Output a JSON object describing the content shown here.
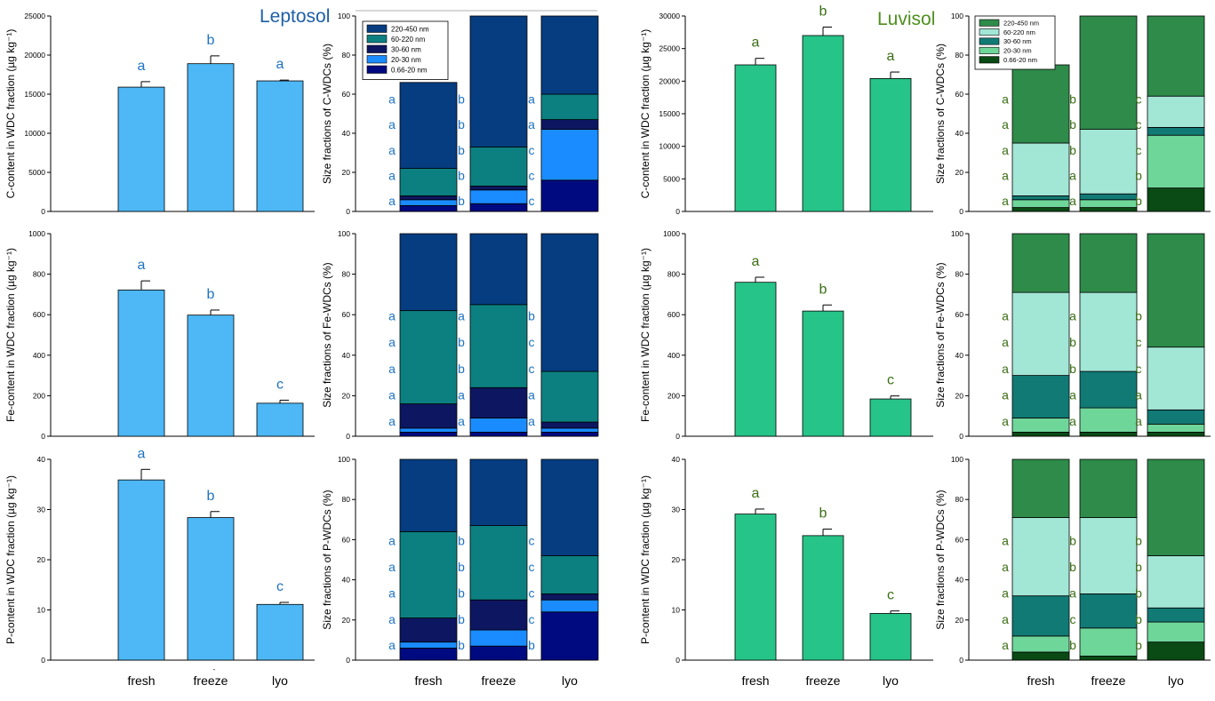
{
  "soil_titles": {
    "leptosol": "Leptosol",
    "luvisol": "Luvisol"
  },
  "x_categories": [
    "fresh",
    "freeze",
    "lyo"
  ],
  "stray_mark": "-",
  "colors": {
    "leptosol_bar": "#4db8f5",
    "luvisol_bar": "#26c488",
    "leptosol_letters": "#1e73c2",
    "luvisol_letters": "#3a6e14",
    "leptosol_fractions": [
      "#063c80",
      "#0c8080",
      "#0d1660",
      "#1a8cff",
      "#000a80"
    ],
    "luvisol_fractions": [
      "#2e8b4a",
      "#a2e6d6",
      "#117a75",
      "#6fd69a",
      "#0a4a14"
    ]
  },
  "legend_labels": [
    "220-450 nm",
    "60-220 nm",
    "30-60 nm",
    "20-30 nm",
    "0.66-20 nm"
  ],
  "chart_data": [
    {
      "type": "bar",
      "soil": "Leptosol",
      "element": "C",
      "ylabel": "C-content in WDC  fraction (µg kg⁻¹)",
      "ylim": [
        0,
        25000
      ],
      "yticks": [
        0,
        5000,
        10000,
        15000,
        20000,
        25000
      ],
      "categories": [
        "fresh",
        "freeze",
        "lyo"
      ],
      "values": [
        15900,
        18900,
        16700
      ],
      "errors": [
        700,
        1000,
        100
      ],
      "letters": [
        "a",
        "b",
        "a"
      ]
    },
    {
      "type": "bar",
      "soil": "Leptosol",
      "element": "Fe",
      "ylabel": "Fe-content in WDC fraction (µg kg⁻¹)",
      "ylim": [
        0,
        1000
      ],
      "yticks": [
        0,
        200,
        400,
        600,
        800,
        1000
      ],
      "categories": [
        "fresh",
        "freeze",
        "lyo"
      ],
      "values": [
        722,
        598,
        163
      ],
      "errors": [
        45,
        25,
        15
      ],
      "letters": [
        "a",
        "b",
        "c"
      ]
    },
    {
      "type": "bar",
      "soil": "Leptosol",
      "element": "P",
      "ylabel": "P-content in WDC fraction (µg kg⁻¹)",
      "ylim": [
        0,
        40
      ],
      "yticks": [
        0,
        10,
        20,
        30,
        40
      ],
      "categories": [
        "fresh",
        "freeze",
        "lyo"
      ],
      "values": [
        35.9,
        28.4,
        11.1
      ],
      "errors": [
        2.1,
        1.2,
        0.4
      ],
      "letters": [
        "a",
        "b",
        "c"
      ]
    },
    {
      "type": "bar",
      "soil": "Luvisol",
      "element": "C",
      "ylabel": "C-content in WDC  fraction (µg kg⁻¹)",
      "ylim": [
        0,
        30000
      ],
      "yticks": [
        0,
        5000,
        10000,
        15000,
        20000,
        25000,
        30000
      ],
      "categories": [
        "fresh",
        "freeze",
        "lyo"
      ],
      "values": [
        22500,
        27000,
        20400
      ],
      "errors": [
        1000,
        1300,
        1000
      ],
      "letters": [
        "a",
        "b",
        "a"
      ]
    },
    {
      "type": "bar",
      "soil": "Luvisol",
      "element": "Fe",
      "ylabel": "Fe-content in WDC fraction (µg kg⁻¹)",
      "ylim": [
        0,
        1000
      ],
      "yticks": [
        0,
        200,
        400,
        600,
        800,
        1000
      ],
      "categories": [
        "fresh",
        "freeze",
        "lyo"
      ],
      "values": [
        760,
        618,
        184
      ],
      "errors": [
        25,
        30,
        15
      ],
      "letters": [
        "a",
        "b",
        "c"
      ]
    },
    {
      "type": "bar",
      "soil": "Luvisol",
      "element": "P",
      "ylabel": "P-content in WDC fraction (µg kg⁻¹)",
      "ylim": [
        0,
        40
      ],
      "yticks": [
        0,
        10,
        20,
        30,
        40
      ],
      "categories": [
        "fresh",
        "freeze",
        "lyo"
      ],
      "values": [
        29.1,
        24.8,
        9.3
      ],
      "errors": [
        1.0,
        1.3,
        0.5
      ],
      "letters": [
        "a",
        "b",
        "c"
      ]
    },
    {
      "type": "stacked_bar",
      "soil": "Leptosol",
      "element": "C",
      "ylabel": "Size fractions of C-WDCs (%)",
      "ylim": [
        0,
        100
      ],
      "yticks": [
        0,
        20,
        40,
        60,
        80,
        100
      ],
      "categories": [
        "fresh",
        "freeze",
        "lyo"
      ],
      "legend": [
        "220-450 nm",
        "60-220 nm",
        "30-60 nm",
        "20-30 nm",
        "0.66-20 nm"
      ],
      "series": [
        {
          "name": "0.66-20 nm",
          "values": [
            3,
            4,
            16
          ]
        },
        {
          "name": "20-30 nm",
          "values": [
            3,
            7,
            26
          ]
        },
        {
          "name": "30-60 nm",
          "values": [
            2,
            2,
            5
          ]
        },
        {
          "name": "60-220 nm",
          "values": [
            14,
            20,
            13
          ]
        },
        {
          "name": "220-450 nm",
          "values": [
            44,
            67,
            40
          ]
        }
      ],
      "letters": [
        [
          "a",
          "a",
          "a",
          "a",
          "a"
        ],
        [
          "b",
          "b",
          "b",
          "b",
          "b"
        ],
        [
          "c",
          "c",
          "c",
          "a",
          "a"
        ]
      ]
    },
    {
      "type": "stacked_bar",
      "soil": "Leptosol",
      "element": "Fe",
      "ylabel": "Size fractions of Fe-WDCs (%)",
      "ylim": [
        0,
        100
      ],
      "yticks": [
        0,
        20,
        40,
        60,
        80,
        100
      ],
      "categories": [
        "fresh",
        "freeze",
        "lyo"
      ],
      "series": [
        {
          "name": "0.66-20 nm",
          "values": [
            2,
            2,
            2
          ]
        },
        {
          "name": "20-30 nm",
          "values": [
            2,
            7,
            2
          ]
        },
        {
          "name": "30-60 nm",
          "values": [
            12,
            15,
            3
          ]
        },
        {
          "name": "60-220 nm",
          "values": [
            46,
            41,
            25
          ]
        },
        {
          "name": "220-450 nm",
          "values": [
            38,
            35,
            68
          ]
        }
      ],
      "letters": [
        [
          "a",
          "a",
          "a",
          "a",
          "a"
        ],
        [
          "a",
          "a",
          "b",
          "b",
          "a"
        ],
        [
          "a",
          "a",
          "c",
          "c",
          "b"
        ]
      ]
    },
    {
      "type": "stacked_bar",
      "soil": "Leptosol",
      "element": "P",
      "ylabel": "Size fractions of P-WDCs (%)",
      "ylim": [
        0,
        100
      ],
      "yticks": [
        0,
        20,
        40,
        60,
        80,
        100
      ],
      "categories": [
        "fresh",
        "freeze",
        "lyo"
      ],
      "series": [
        {
          "name": "0.66-20 nm",
          "values": [
            6,
            7,
            24
          ]
        },
        {
          "name": "20-30 nm",
          "values": [
            3,
            8,
            6
          ]
        },
        {
          "name": "30-60 nm",
          "values": [
            12,
            15,
            3
          ]
        },
        {
          "name": "60-220 nm",
          "values": [
            43,
            37,
            19
          ]
        },
        {
          "name": "220-450 nm",
          "values": [
            36,
            33,
            48
          ]
        }
      ],
      "letters": [
        [
          "a",
          "a",
          "a",
          "a",
          "a"
        ],
        [
          "b",
          "b",
          "b",
          "b",
          "b"
        ],
        [
          "b",
          "c",
          "c",
          "c",
          "c"
        ]
      ]
    },
    {
      "type": "stacked_bar",
      "soil": "Luvisol",
      "element": "C",
      "ylabel": "Size fractions of C-WDCs (%)",
      "ylim": [
        0,
        100
      ],
      "yticks": [
        0,
        20,
        40,
        60,
        80,
        100
      ],
      "categories": [
        "fresh",
        "freeze",
        "lyo"
      ],
      "legend": [
        "220-450 nm",
        "60-220 nm",
        "30-60 nm",
        "20-30 nm",
        "0.66-20 nm"
      ],
      "series": [
        {
          "name": "0.66-20 nm",
          "values": [
            2,
            2,
            12
          ]
        },
        {
          "name": "20-30 nm",
          "values": [
            4,
            4,
            27
          ]
        },
        {
          "name": "30-60 nm",
          "values": [
            2,
            3,
            4
          ]
        },
        {
          "name": "60-220 nm",
          "values": [
            27,
            33,
            16
          ]
        },
        {
          "name": "220-450 nm",
          "values": [
            40,
            58,
            41
          ]
        }
      ],
      "letters": [
        [
          "a",
          "a",
          "a",
          "a",
          "a"
        ],
        [
          "a",
          "a",
          "b",
          "b",
          "b"
        ],
        [
          "b",
          "b",
          "c",
          "c",
          "c"
        ]
      ]
    },
    {
      "type": "stacked_bar",
      "soil": "Luvisol",
      "element": "Fe",
      "ylabel": "Size fractions of Fe-WDCs (%)",
      "ylim": [
        0,
        100
      ],
      "yticks": [
        0,
        20,
        40,
        60,
        80,
        100
      ],
      "categories": [
        "fresh",
        "freeze",
        "lyo"
      ],
      "series": [
        {
          "name": "0.66-20 nm",
          "values": [
            2,
            2,
            2
          ]
        },
        {
          "name": "20-30 nm",
          "values": [
            7,
            12,
            4
          ]
        },
        {
          "name": "30-60 nm",
          "values": [
            21,
            18,
            7
          ]
        },
        {
          "name": "60-220 nm",
          "values": [
            41,
            39,
            31
          ]
        },
        {
          "name": "220-450 nm",
          "values": [
            29,
            29,
            56
          ]
        }
      ],
      "letters": [
        [
          "a",
          "a",
          "a",
          "a",
          "a"
        ],
        [
          "a",
          "a",
          "b",
          "b",
          "a"
        ],
        [
          "a",
          "a",
          "c",
          "c",
          "b"
        ]
      ]
    },
    {
      "type": "stacked_bar",
      "soil": "Luvisol",
      "element": "P",
      "ylabel": "Size fractions of P-WDCs (%)",
      "ylim": [
        0,
        100
      ],
      "yticks": [
        0,
        20,
        40,
        60,
        80,
        100
      ],
      "categories": [
        "fresh",
        "freeze",
        "lyo"
      ],
      "series": [
        {
          "name": "0.66-20 nm",
          "values": [
            4,
            2,
            9
          ]
        },
        {
          "name": "20-30 nm",
          "values": [
            8,
            14,
            10
          ]
        },
        {
          "name": "30-60 nm",
          "values": [
            20,
            17,
            7
          ]
        },
        {
          "name": "60-220 nm",
          "values": [
            39,
            38,
            26
          ]
        },
        {
          "name": "220-450 nm",
          "values": [
            29,
            29,
            48
          ]
        }
      ],
      "letters": [
        [
          "a",
          "a",
          "a",
          "a",
          "a"
        ],
        [
          "b",
          "c",
          "a",
          "b",
          "b"
        ],
        [
          "b",
          "b",
          "b",
          "b",
          "b"
        ]
      ]
    }
  ]
}
